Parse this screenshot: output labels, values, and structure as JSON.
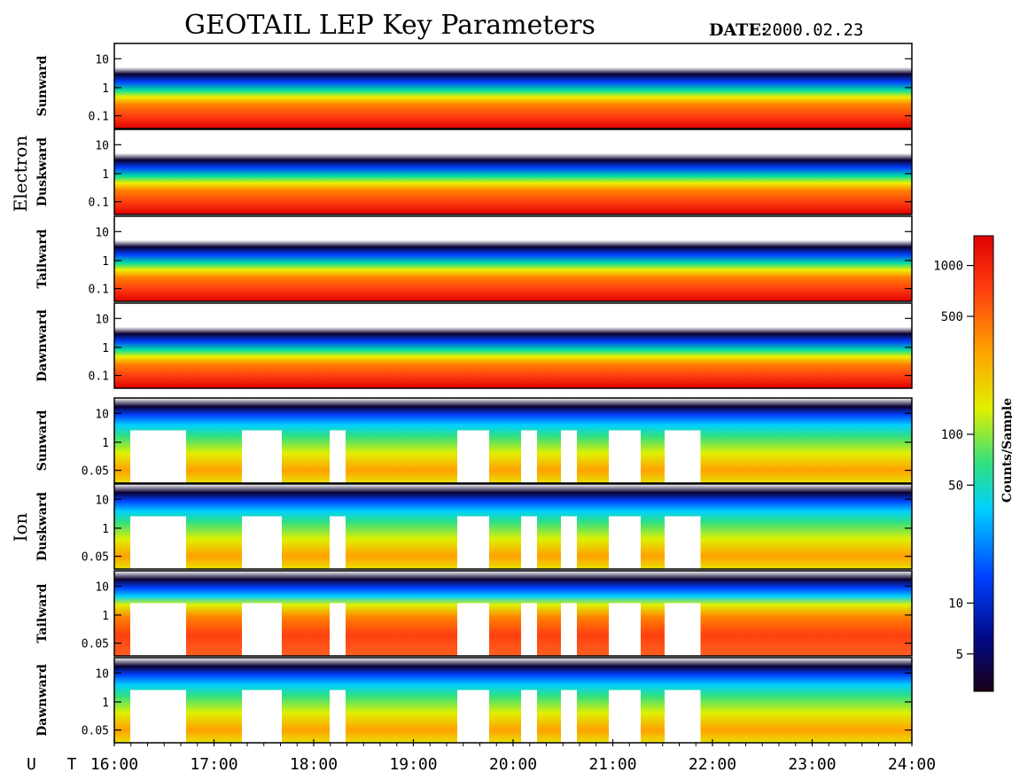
{
  "header": {
    "title": "GEOTAIL LEP Key Parameters",
    "date_label": "DATE:",
    "date_value": "2000.02.23"
  },
  "chart_data": {
    "type": "heatmap",
    "title": "GEOTAIL LEP Key Parameters",
    "date": "2000.02.23",
    "x_axis": {
      "label": "U T",
      "range": [
        "16:00",
        "24:00"
      ],
      "ticks": [
        "16:00",
        "17:00",
        "18:00",
        "19:00",
        "20:00",
        "21:00",
        "22:00",
        "23:00",
        "24:00"
      ]
    },
    "groups": [
      {
        "name": "Electron",
        "panels": [
          "Sunward",
          "Duskward",
          "Tailward",
          "Dawnward"
        ],
        "y_ticks": [
          "10",
          "1",
          "0.1"
        ],
        "y_scale": "log"
      },
      {
        "name": "Ion",
        "panels": [
          "Sunward",
          "Duskward",
          "Tailward",
          "Dawnward"
        ],
        "y_ticks": [
          "10",
          "1",
          "0.05"
        ],
        "y_scale": "log"
      }
    ],
    "colorbar": {
      "label": "Counts/Sample",
      "scale": "log",
      "ticks": [
        "1000",
        "500",
        "100",
        "50",
        "10",
        "5"
      ],
      "tick_values": [
        1000,
        500,
        100,
        50,
        10,
        5
      ],
      "range": [
        3,
        1500
      ],
      "colormap": [
        "#1a0016",
        "#000a8a",
        "#0040ff",
        "#00d0ff",
        "#30e080",
        "#e0f000",
        "#ffa000",
        "#ff4010",
        "#e00000"
      ]
    }
  }
}
